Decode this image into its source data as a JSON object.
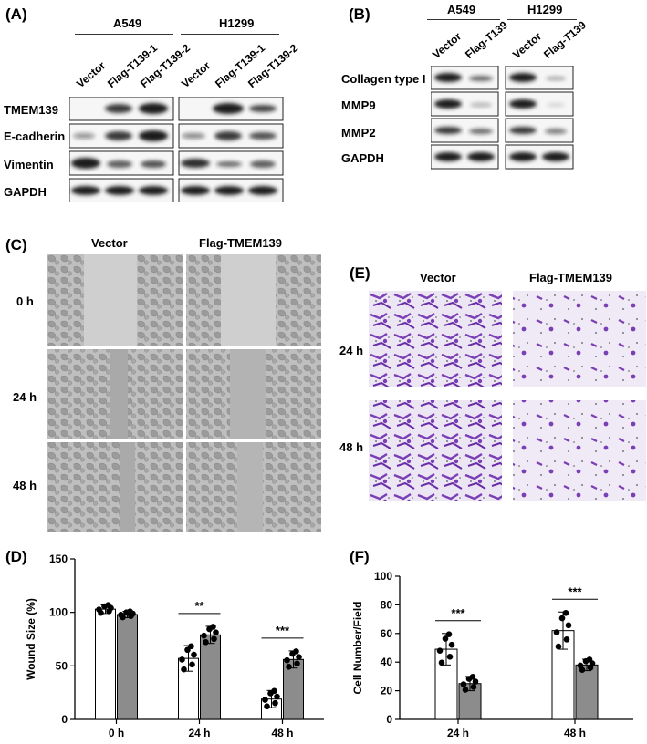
{
  "panelA": {
    "label": "(A)",
    "groups": [
      "A549",
      "H1299"
    ],
    "lanes": [
      "Vector",
      "Flag-T139-1",
      "Flag-T139-2",
      "Vector",
      "Flag-T139-1",
      "Flag-T139-2"
    ],
    "rows": [
      "TMEM139",
      "E-cadherin",
      "Vimentin",
      "GAPDH"
    ]
  },
  "panelB": {
    "label": "(B)",
    "groups": [
      "A549",
      "H1299"
    ],
    "lanes": [
      "Vector",
      "Flag-T139",
      "Vector",
      "Flag-T139"
    ],
    "rows": [
      "Collagen type I",
      "MMP9",
      "MMP2",
      "GAPDH"
    ]
  },
  "panelC": {
    "label": "(C)",
    "columns": [
      "Vector",
      "Flag-TMEM139"
    ],
    "rows": [
      "0 h",
      "24 h",
      "48 h"
    ]
  },
  "panelE": {
    "label": "(E)",
    "columns": [
      "Vector",
      "Flag-TMEM139"
    ],
    "rows": [
      "24 h",
      "48 h"
    ]
  },
  "panelD": {
    "label": "(D)"
  },
  "panelF": {
    "label": "(F)"
  },
  "colors": {
    "open_bar": "#ffffff",
    "filled_bar": "#8c8c8c",
    "stain": "#7a3fb5"
  },
  "chart_data": [
    {
      "type": "bar",
      "panel": "(D)",
      "ylabel": "Wound Size (%)",
      "categories": [
        "0 h",
        "24 h",
        "48 h"
      ],
      "yticks": [
        "0",
        "50",
        "100",
        "150"
      ],
      "ylim": [
        0,
        150
      ],
      "series": [
        {
          "values": [
            103,
            57,
            19
          ],
          "sd": [
            4,
            12,
            8
          ]
        },
        {
          "values": [
            98,
            79,
            56
          ],
          "sd": [
            3,
            8,
            8
          ]
        }
      ],
      "significance": [
        "",
        "**",
        "***"
      ]
    },
    {
      "type": "bar",
      "panel": "(F)",
      "ylabel": "Cell Number/Field",
      "categories": [
        "24 h",
        "48 h"
      ],
      "yticks": [
        "0",
        "20",
        "40",
        "60",
        "80",
        "100"
      ],
      "ylim": [
        0,
        100
      ],
      "series": [
        {
          "values": [
            49,
            62
          ],
          "sd": [
            11,
            13
          ]
        },
        {
          "values": [
            25,
            38
          ],
          "sd": [
            5,
            4
          ]
        }
      ],
      "significance": [
        "***",
        "***"
      ]
    }
  ]
}
